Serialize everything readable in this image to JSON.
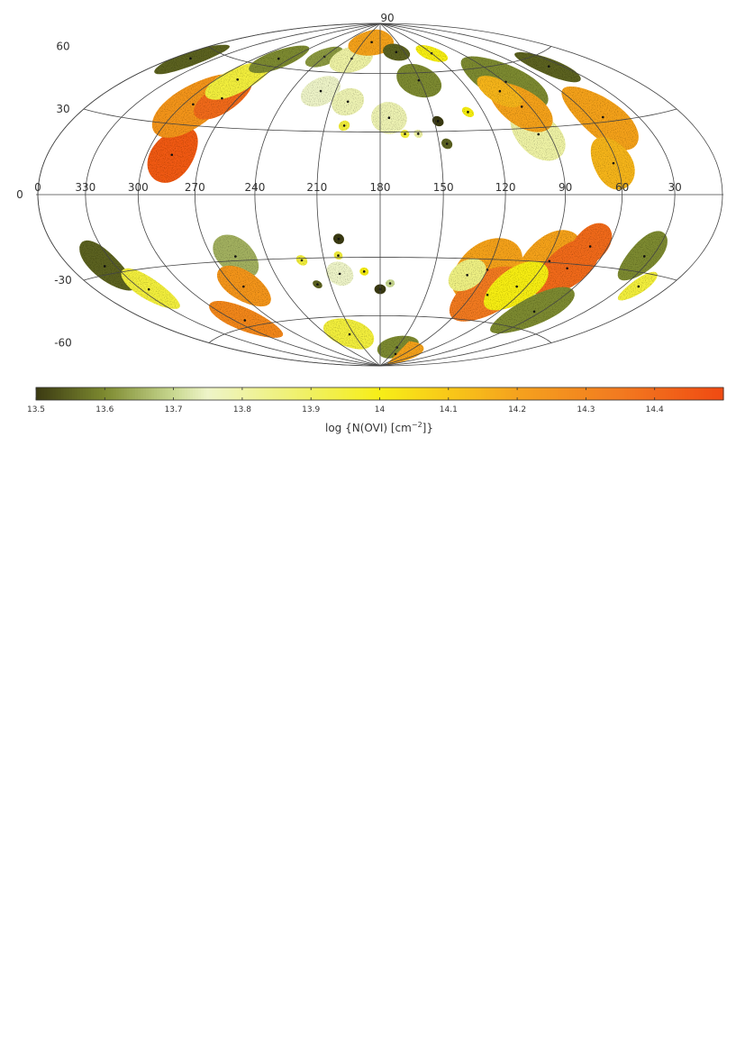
{
  "chart_data": {
    "type": "skymap",
    "projection": "hammer-aitoff",
    "center_lon": 180,
    "lon_ticks": [
      0,
      330,
      300,
      270,
      240,
      210,
      180,
      150,
      120,
      90,
      60,
      30
    ],
    "lat_ticks": [
      90,
      60,
      30,
      0,
      -30,
      -60
    ],
    "grid": true,
    "colorbar": {
      "clim": [
        13.5,
        14.5
      ],
      "ticks": [
        13.5,
        13.6,
        13.7,
        13.8,
        13.9,
        14,
        14.1,
        14.2,
        14.3,
        14.4
      ],
      "label": [
        "log {N(OVI) [cm",
        "−2",
        "]}"
      ],
      "colormap": [
        [
          13.5,
          "#3b3a12"
        ],
        [
          13.6,
          "#7d8a30"
        ],
        [
          13.7,
          "#c8d890"
        ],
        [
          13.75,
          "#eef4c8"
        ],
        [
          13.9,
          "#f0f060"
        ],
        [
          14.0,
          "#f7ee18"
        ],
        [
          14.1,
          "#f8c818"
        ],
        [
          14.2,
          "#f5a21e"
        ],
        [
          14.35,
          "#f27a20"
        ],
        [
          14.5,
          "#f04a12"
        ]
      ]
    },
    "patches": [
      {
        "l": 286,
        "b": 17,
        "r": 12,
        "value": 14.45
      },
      {
        "l": 294,
        "b": 39,
        "r": 15,
        "value": 14.25
      },
      {
        "l": 280,
        "b": 43,
        "r": 10,
        "value": 14.4
      },
      {
        "l": 285,
        "b": 52,
        "r": 10,
        "value": 13.95
      },
      {
        "l": 348,
        "b": 55,
        "r": 8,
        "value": 13.55
      },
      {
        "l": 280,
        "b": 64,
        "r": 8,
        "value": 13.6
      },
      {
        "l": 240,
        "b": 68,
        "r": 6,
        "value": 13.62
      },
      {
        "l": 210,
        "b": 68,
        "r": 8,
        "value": 13.8
      },
      {
        "l": 195,
        "b": 78,
        "r": 8,
        "value": 14.2
      },
      {
        "l": 160,
        "b": 72,
        "r": 5,
        "value": 13.55
      },
      {
        "l": 220,
        "b": 50,
        "r": 8,
        "value": 13.75
      },
      {
        "l": 200,
        "b": 45,
        "r": 7,
        "value": 13.78
      },
      {
        "l": 151,
        "b": 56,
        "r": 9,
        "value": 13.6
      },
      {
        "l": 175,
        "b": 37,
        "r": 8,
        "value": 13.78
      },
      {
        "l": 199.5,
        "b": 33,
        "r": 2.5,
        "value": 13.95
      },
      {
        "l": 148,
        "b": 35,
        "r": 2.5,
        "value": 13.5
      },
      {
        "l": 146,
        "b": 24,
        "r": 2.5,
        "value": 13.55
      },
      {
        "l": 129,
        "b": 39,
        "r": 2.5,
        "value": 14.0
      },
      {
        "l": 167,
        "b": 29,
        "r": 2,
        "value": 13.95
      },
      {
        "l": 160,
        "b": 29,
        "r": 2,
        "value": 13.8
      },
      {
        "l": 89,
        "b": 52,
        "r": 14,
        "value": 13.6
      },
      {
        "l": 96,
        "b": 27,
        "r": 12,
        "value": 13.8
      },
      {
        "l": 95,
        "b": 40,
        "r": 12,
        "value": 14.2
      },
      {
        "l": 52,
        "b": 32,
        "r": 14,
        "value": 14.2
      },
      {
        "l": 62,
        "b": 13,
        "r": 11,
        "value": 14.15
      },
      {
        "l": 40,
        "b": 55,
        "r": 8,
        "value": 13.55
      },
      {
        "l": 120,
        "b": 70,
        "r": 5,
        "value": 14.0
      },
      {
        "l": 100,
        "b": 48,
        "r": 8,
        "value": 14.15
      },
      {
        "l": 337,
        "b": -27,
        "r": 10,
        "value": 13.55
      },
      {
        "l": 325,
        "b": -38,
        "r": 9,
        "value": 13.95
      },
      {
        "l": 257,
        "b": -28,
        "r": 10,
        "value": 13.65
      },
      {
        "l": 264,
        "b": -42,
        "r": 10,
        "value": 14.25
      },
      {
        "l": 292,
        "b": -57,
        "r": 10,
        "value": 14.3
      },
      {
        "l": 215,
        "b": -70,
        "r": 9,
        "value": 13.95
      },
      {
        "l": 150,
        "b": -78,
        "r": 7,
        "value": 13.6
      },
      {
        "l": 140,
        "b": -82,
        "r": 8,
        "value": 14.2
      },
      {
        "l": 200.7,
        "b": -21,
        "r": 2.5,
        "value": 13.5
      },
      {
        "l": 222,
        "b": -31,
        "r": 2.5,
        "value": 13.95
      },
      {
        "l": 202,
        "b": -29,
        "r": 2,
        "value": 13.95
      },
      {
        "l": 189,
        "b": -37,
        "r": 2,
        "value": 14.0
      },
      {
        "l": 180,
        "b": -46,
        "r": 2.5,
        "value": 13.5
      },
      {
        "l": 218,
        "b": -43,
        "r": 2,
        "value": 13.55
      },
      {
        "l": 174,
        "b": -43,
        "r": 2,
        "value": 13.7
      },
      {
        "l": 203,
        "b": -38,
        "r": 6,
        "value": 13.75
      },
      {
        "l": 120,
        "b": -35,
        "r": 15,
        "value": 14.2
      },
      {
        "l": 110,
        "b": -47,
        "r": 14,
        "value": 14.35
      },
      {
        "l": 88,
        "b": -29.5,
        "r": 14,
        "value": 14.2
      },
      {
        "l": 75,
        "b": -32,
        "r": 13,
        "value": 14.4
      },
      {
        "l": 130,
        "b": -38,
        "r": 8,
        "value": 13.85
      },
      {
        "l": 96,
        "b": -42,
        "r": 12,
        "value": 14.0
      },
      {
        "l": 65,
        "b": -52,
        "r": 12,
        "value": 13.6
      },
      {
        "l": 35,
        "b": -24,
        "r": 10,
        "value": 13.6
      },
      {
        "l": 20,
        "b": -35,
        "r": 6,
        "value": 13.95
      },
      {
        "l": 70,
        "b": -22,
        "r": 10,
        "value": 14.4
      }
    ]
  }
}
